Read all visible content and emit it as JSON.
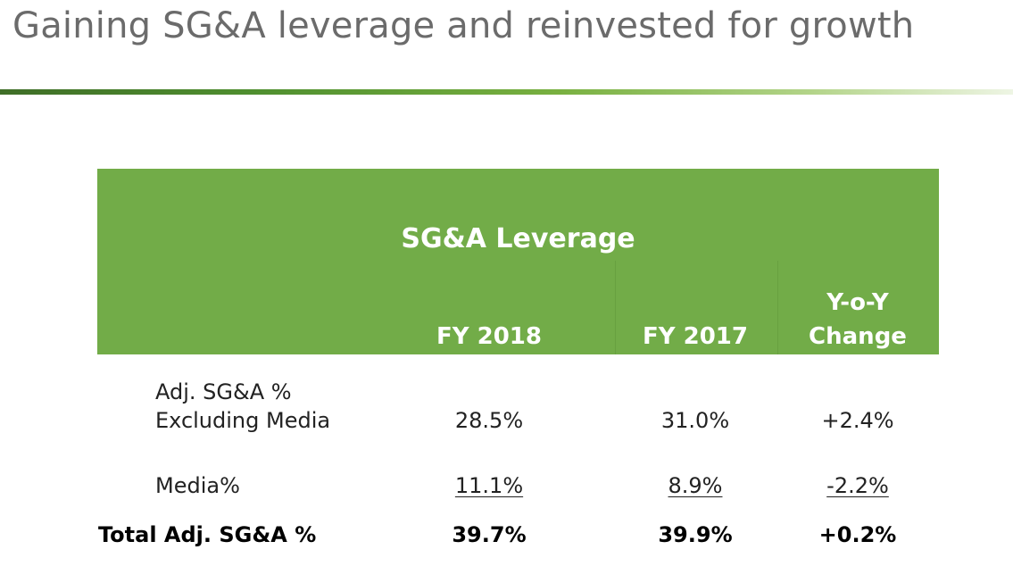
{
  "slide": {
    "title": "Gaining SG&A leverage and reinvested for growth"
  },
  "table": {
    "title": "SG&A Leverage",
    "columns": [
      "FY 2018",
      "FY 2017",
      "Y-o-Y",
      "Change"
    ],
    "rows": [
      {
        "label_line1": "Adj. SG&A %",
        "label_line2": "Excluding Media",
        "fy2018": "28.5%",
        "fy2017": "31.0%",
        "yoy": "+2.4%"
      },
      {
        "label": "Media%",
        "fy2018": "11.1%",
        "fy2017": "8.9%",
        "yoy": "-2.2%"
      },
      {
        "label": "Total Adj. SG&A %",
        "fy2018": "39.7%",
        "fy2017": "39.9%",
        "yoy": "+0.2%"
      }
    ]
  },
  "colors": {
    "header_green": "#72ac48",
    "title_gray": "#6b6b6b"
  }
}
